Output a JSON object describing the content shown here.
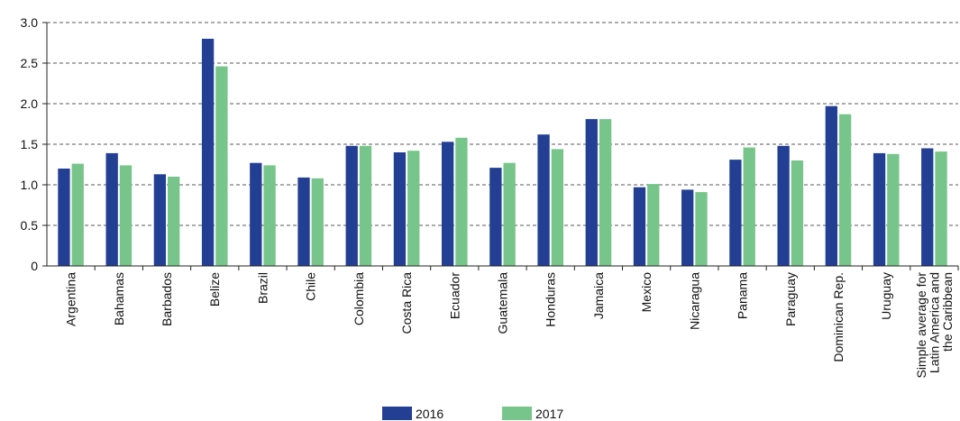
{
  "chart_data": {
    "type": "bar",
    "categories": [
      "Argentina",
      "Bahamas",
      "Barbados",
      "Belize",
      "Brazil",
      "Chile",
      "Colombia",
      "Costa Rica",
      "Ecuador",
      "Guatemala",
      "Honduras",
      "Jamaica",
      "Mexico",
      "Nicaragua",
      "Panama",
      "Paraguay",
      "Dominican Rep.",
      "Uruguay",
      "Simple average for\nLatin America and\nthe Caribbean"
    ],
    "series": [
      {
        "name": "2016",
        "color": "#233f94",
        "values": [
          1.2,
          1.39,
          1.13,
          2.8,
          1.27,
          1.09,
          1.48,
          1.4,
          1.53,
          1.21,
          1.62,
          1.81,
          0.97,
          0.94,
          1.31,
          1.48,
          1.97,
          1.39,
          1.45
        ]
      },
      {
        "name": "2017",
        "color": "#77c58b",
        "values": [
          1.26,
          1.24,
          1.1,
          2.46,
          1.24,
          1.08,
          1.48,
          1.42,
          1.58,
          1.27,
          1.44,
          1.81,
          1.01,
          0.91,
          1.46,
          1.3,
          1.87,
          1.38,
          1.41
        ]
      }
    ],
    "ylim": [
      0,
      3
    ],
    "yticks": [
      0,
      0.5,
      {
        "value": 1,
        "label": "1.0"
      },
      1.5,
      {
        "value": 2,
        "label": "2.0"
      },
      2.5,
      {
        "value": 3,
        "label": "3.0"
      }
    ],
    "grid": true,
    "legend": "bottom"
  }
}
